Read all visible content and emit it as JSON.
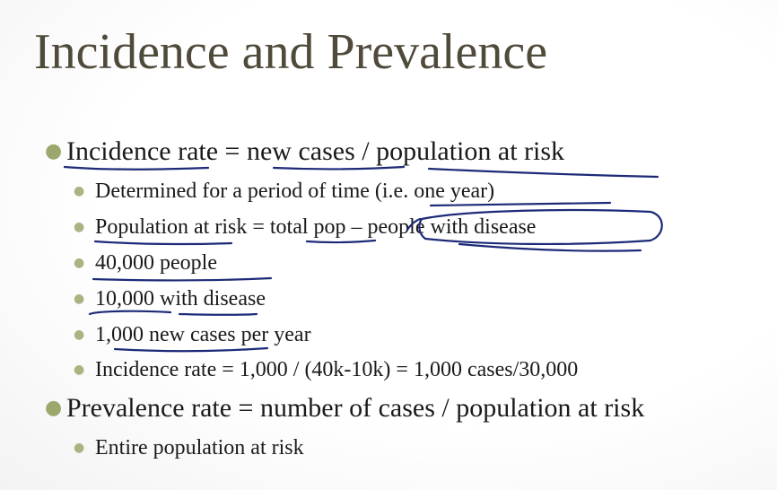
{
  "slide": {
    "title": "Incidence and Prevalence",
    "bullets": [
      {
        "level": 1,
        "text": "Incidence rate = new cases / population at risk"
      },
      {
        "level": 2,
        "text": "Determined for a period of time (i.e. one year)"
      },
      {
        "level": 2,
        "text": "Population at risk = total pop – people with disease"
      },
      {
        "level": 2,
        "text": "40,000 people"
      },
      {
        "level": 2,
        "text": "10,000 with disease"
      },
      {
        "level": 2,
        "text": "1,000 new cases per year"
      },
      {
        "level": 2,
        "text": "Incidence rate = 1,000 / (40k-10k) = 1,000 cases/30,000"
      },
      {
        "level": 1,
        "text": "Prevalence rate = number of cases / population at risk"
      },
      {
        "level": 2,
        "text": "Entire population at risk"
      }
    ]
  },
  "colors": {
    "title": "#4f4a3a",
    "bullet_dot": "#9aa86d",
    "annotation_ink": "#1c2a78"
  }
}
